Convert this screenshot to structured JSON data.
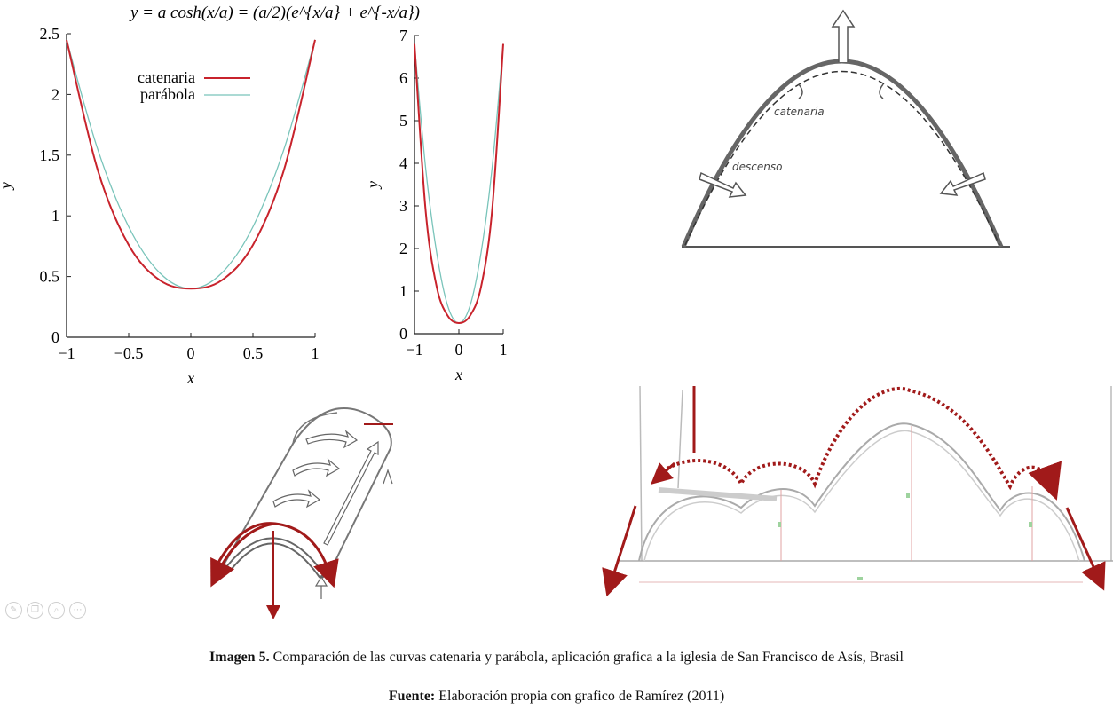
{
  "formula": "y = a cosh(x/a) = (a/2)(e^{x/a} + e^{-x/a})",
  "chart_data": [
    {
      "type": "line",
      "xlabel": "x",
      "ylabel": "y",
      "xlim": [
        -1,
        1
      ],
      "ylim": [
        0,
        2.5
      ],
      "xticks": [
        "−1",
        "−0.5",
        "0",
        "0.5",
        "1"
      ],
      "yticks": [
        "0",
        "0.5",
        "1",
        "1.5",
        "2",
        "2.5"
      ],
      "legend_position": "upper-left",
      "series": [
        {
          "name": "catenaria",
          "color": "#c8232c",
          "x": [
            -1,
            -0.75,
            -0.5,
            -0.25,
            0,
            0.25,
            0.5,
            0.75,
            1
          ],
          "y": [
            2.45,
            1.38,
            0.76,
            0.47,
            0.4,
            0.47,
            0.76,
            1.38,
            2.45
          ]
        },
        {
          "name": "parábola",
          "color": "#79c4ba",
          "x": [
            -1,
            -0.75,
            -0.5,
            -0.25,
            0,
            0.25,
            0.5,
            0.75,
            1
          ],
          "y": [
            2.45,
            1.55,
            0.91,
            0.53,
            0.4,
            0.53,
            0.91,
            1.55,
            2.45
          ]
        }
      ]
    },
    {
      "type": "line",
      "xlabel": "x",
      "ylabel": "y",
      "xlim": [
        -1,
        1
      ],
      "ylim": [
        0,
        7
      ],
      "xticks": [
        "−1",
        "0",
        "1"
      ],
      "yticks": [
        "0",
        "1",
        "2",
        "3",
        "4",
        "5",
        "6",
        "7"
      ],
      "series": [
        {
          "color": "#c8232c",
          "x": [
            -1,
            -0.75,
            -0.5,
            -0.25,
            0,
            0.25,
            0.5,
            0.75,
            1
          ],
          "y": [
            6.8,
            2.9,
            1.1,
            0.42,
            0.25,
            0.42,
            1.1,
            2.9,
            6.8
          ]
        },
        {
          "color": "#79c4ba",
          "x": [
            -1,
            -0.75,
            -0.5,
            -0.25,
            0,
            0.25,
            0.5,
            0.75,
            1
          ],
          "y": [
            6.8,
            3.9,
            1.9,
            0.65,
            0.25,
            0.65,
            1.9,
            3.9,
            6.8
          ]
        }
      ]
    }
  ],
  "arch_sketch": {
    "label_catenaria": "catenaria",
    "label_descenso": "descenso"
  },
  "caption": {
    "bold": "Imagen 5.",
    "text": " Comparación de las curvas catenaria y parábola, aplicación grafica a la iglesia de San Francisco de Asís, Brasil"
  },
  "source": {
    "bold": "Fuente:",
    "text": " Elaboración propia con grafico de Ramírez (2011)"
  },
  "toolbar": [
    "pencil-icon",
    "copy-icon",
    "zoom-icon",
    "more-icon"
  ],
  "colors": {
    "catenaria": "#c8232c",
    "parabola": "#79c4ba",
    "accent_red": "#a11a1a"
  }
}
